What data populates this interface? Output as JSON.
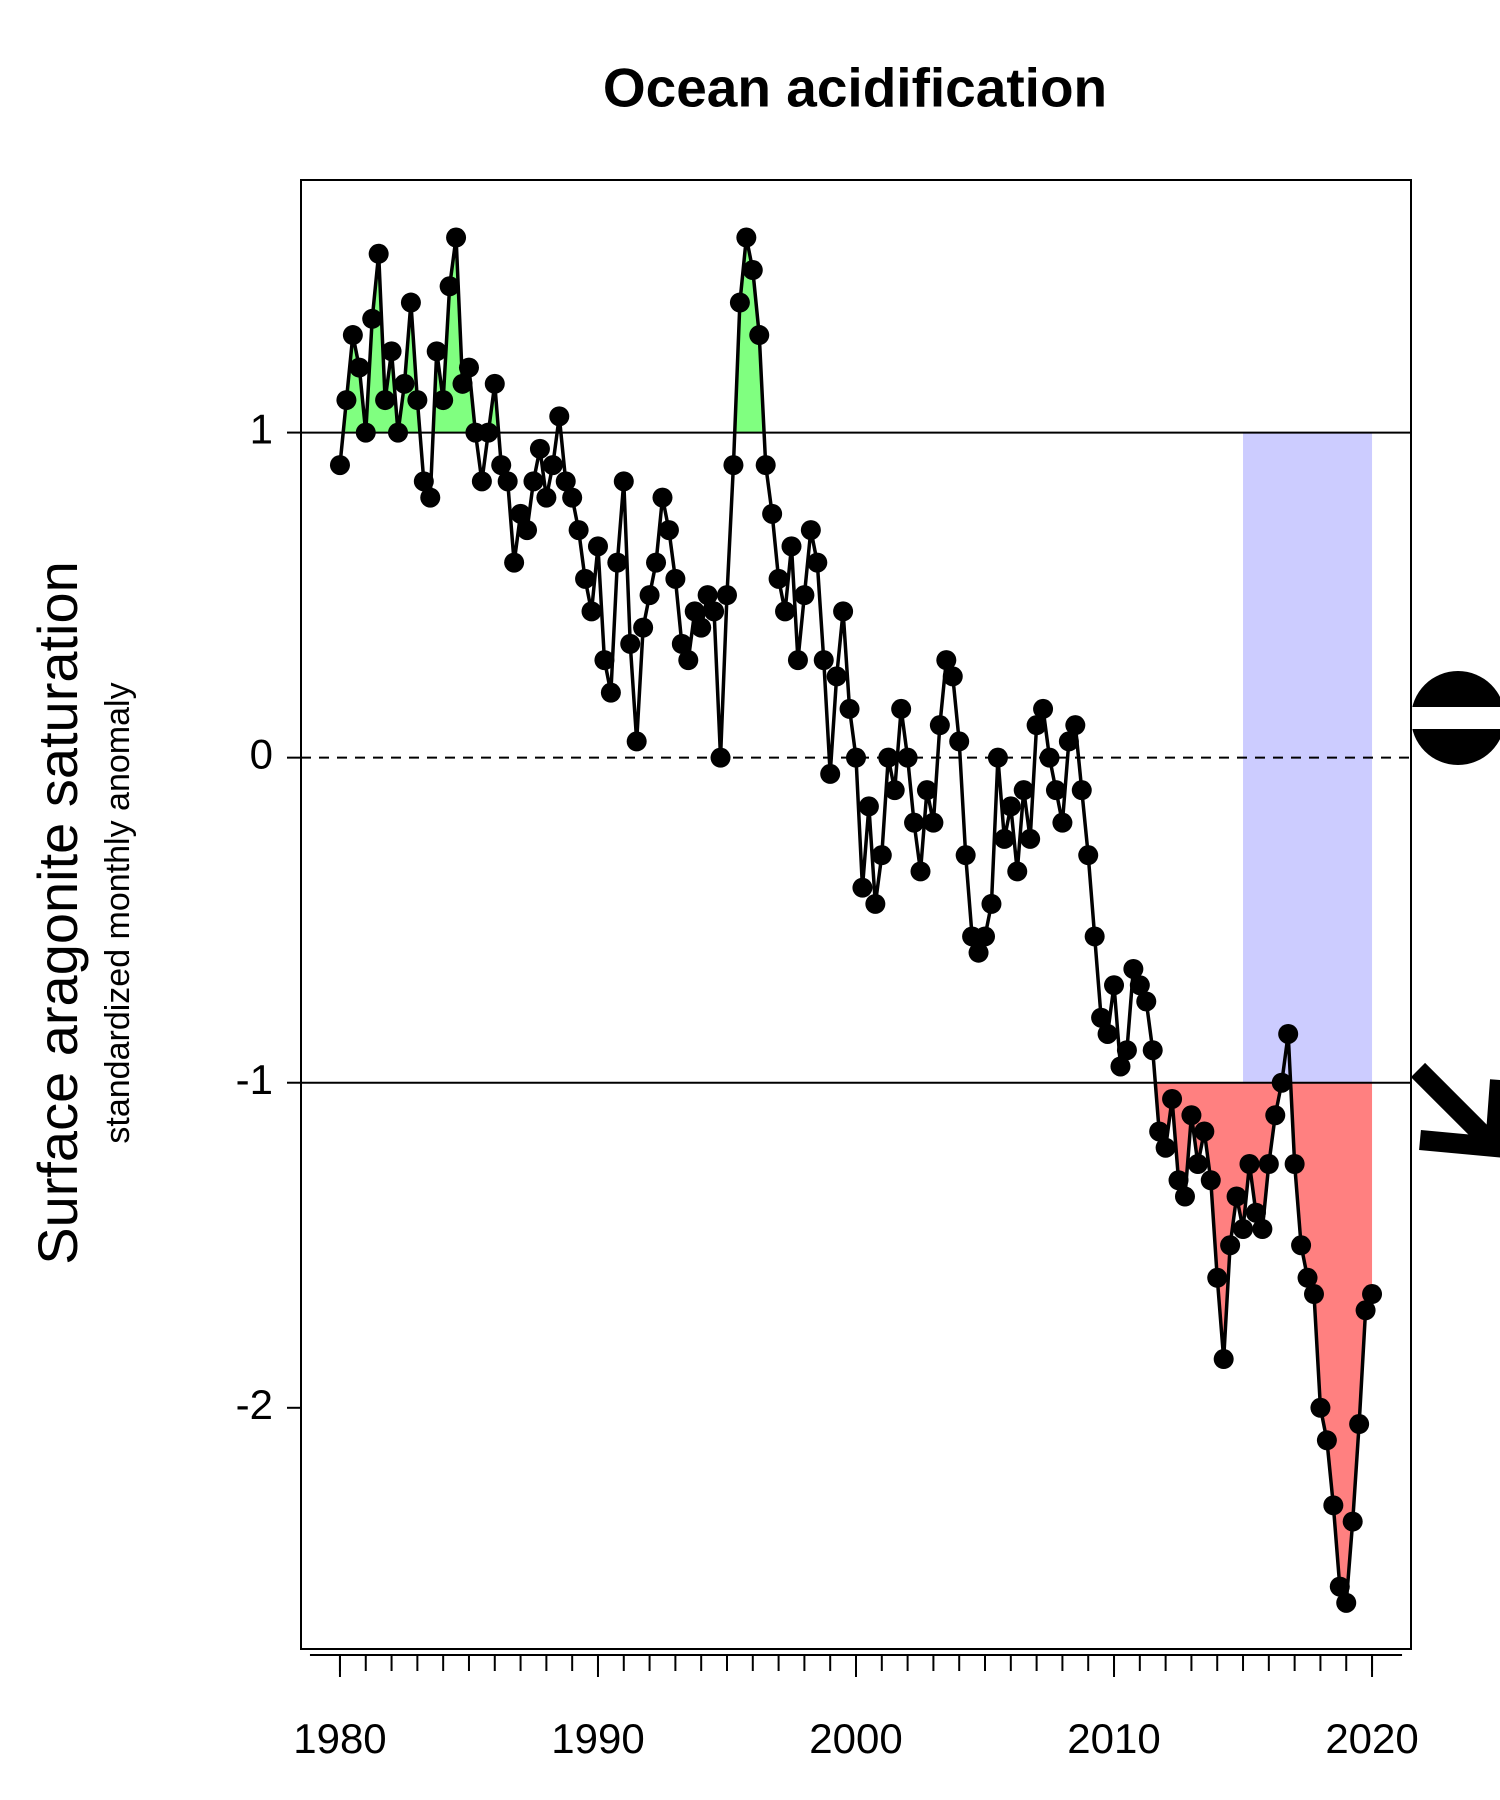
{
  "chart_data": {
    "type": "line",
    "title": "Ocean acidification",
    "y_label": "Surface aragonite saturation",
    "y_sublabel": "standardized monthly anomaly",
    "x": [
      1980.0,
      1980.25,
      1980.5,
      1980.75,
      1981.0,
      1981.25,
      1981.5,
      1981.75,
      1982.0,
      1982.25,
      1982.5,
      1982.75,
      1983.0,
      1983.25,
      1983.5,
      1983.75,
      1984.0,
      1984.25,
      1984.5,
      1984.75,
      1985.0,
      1985.25,
      1985.5,
      1985.75,
      1986.0,
      1986.25,
      1986.5,
      1986.75,
      1987.0,
      1987.25,
      1987.5,
      1987.75,
      1988.0,
      1988.25,
      1988.5,
      1988.75,
      1989.0,
      1989.25,
      1989.5,
      1989.75,
      1990.0,
      1990.25,
      1990.5,
      1990.75,
      1991.0,
      1991.25,
      1991.5,
      1991.75,
      1992.0,
      1992.25,
      1992.5,
      1992.75,
      1993.0,
      1993.25,
      1993.5,
      1993.75,
      1994.0,
      1994.25,
      1994.5,
      1994.75,
      1995.0,
      1995.25,
      1995.5,
      1995.75,
      1996.0,
      1996.25,
      1996.5,
      1996.75,
      1997.0,
      1997.25,
      1997.5,
      1997.75,
      1998.0,
      1998.25,
      1998.5,
      1998.75,
      1999.0,
      1999.25,
      1999.5,
      1999.75,
      2000.0,
      2000.25,
      2000.5,
      2000.75,
      2001.0,
      2001.25,
      2001.5,
      2001.75,
      2002.0,
      2002.25,
      2002.5,
      2002.75,
      2003.0,
      2003.25,
      2003.5,
      2003.75,
      2004.0,
      2004.25,
      2004.5,
      2004.75,
      2005.0,
      2005.25,
      2005.5,
      2005.75,
      2006.0,
      2006.25,
      2006.5,
      2006.75,
      2007.0,
      2007.25,
      2007.5,
      2007.75,
      2008.0,
      2008.25,
      2008.5,
      2008.75,
      2009.0,
      2009.25,
      2009.5,
      2009.75,
      2010.0,
      2010.25,
      2010.5,
      2010.75,
      2011.0,
      2011.25,
      2011.5,
      2011.75,
      2012.0,
      2012.25,
      2012.5,
      2012.75,
      2013.0,
      2013.25,
      2013.5,
      2013.75,
      2014.0,
      2014.25,
      2014.5,
      2014.75,
      2015.0,
      2015.25,
      2015.5,
      2015.75,
      2016.0,
      2016.25,
      2016.5,
      2016.75,
      2017.0,
      2017.25,
      2017.5,
      2017.75,
      2018.0,
      2018.25,
      2018.5,
      2018.75,
      2019.0,
      2019.25,
      2019.5,
      2019.75,
      2020.0
    ],
    "series": [
      {
        "color": "#000000",
        "values": [
          0.9,
          1.1,
          1.3,
          1.2,
          1.0,
          1.35,
          1.55,
          1.1,
          1.25,
          1.0,
          1.15,
          1.4,
          1.1,
          0.85,
          0.8,
          1.25,
          1.1,
          1.45,
          1.6,
          1.15,
          1.2,
          1.0,
          0.85,
          1.0,
          1.15,
          0.9,
          0.85,
          0.6,
          0.75,
          0.7,
          0.85,
          0.95,
          0.8,
          0.9,
          1.05,
          0.85,
          0.8,
          0.7,
          0.55,
          0.45,
          0.65,
          0.3,
          0.2,
          0.6,
          0.85,
          0.35,
          0.05,
          0.4,
          0.5,
          0.6,
          0.8,
          0.7,
          0.55,
          0.35,
          0.3,
          0.45,
          0.4,
          0.5,
          0.45,
          0.0,
          0.5,
          0.9,
          1.4,
          1.6,
          1.5,
          1.3,
          0.9,
          0.75,
          0.55,
          0.45,
          0.65,
          0.3,
          0.5,
          0.7,
          0.6,
          0.3,
          -0.05,
          0.25,
          0.45,
          0.15,
          0.0,
          -0.4,
          -0.15,
          -0.45,
          -0.3,
          0.0,
          -0.1,
          0.15,
          0.0,
          -0.2,
          -0.35,
          -0.1,
          -0.2,
          0.1,
          0.3,
          0.25,
          0.05,
          -0.3,
          -0.55,
          -0.6,
          -0.55,
          -0.45,
          0.0,
          -0.25,
          -0.15,
          -0.35,
          -0.1,
          -0.25,
          0.1,
          0.15,
          0.0,
          -0.1,
          -0.2,
          0.05,
          0.1,
          -0.1,
          -0.3,
          -0.55,
          -0.8,
          -0.85,
          -0.7,
          -0.95,
          -0.9,
          -0.65,
          -0.7,
          -0.75,
          -0.9,
          -1.15,
          -1.2,
          -1.05,
          -1.3,
          -1.35,
          -1.1,
          -1.25,
          -1.15,
          -1.3,
          -1.6,
          -1.85,
          -1.5,
          -1.35,
          -1.45,
          -1.25,
          -1.4,
          -1.45,
          -1.25,
          -1.1,
          -1.0,
          -0.85,
          -1.25,
          -1.5,
          -1.6,
          -1.65,
          -2.0,
          -2.1,
          -2.3,
          -2.55,
          -2.6,
          -2.35,
          -2.05,
          -1.7,
          -1.65
        ]
      }
    ],
    "xlim": [
      1978.49,
      2021.51
    ],
    "ylim": [
      -2.742,
      1.777
    ],
    "xticks": [
      1980,
      1990,
      2000,
      2010,
      2020
    ],
    "xminorticks": [
      1980,
      1981,
      1982,
      1983,
      1984,
      1985,
      1986,
      1987,
      1988,
      1989,
      1990,
      1991,
      1992,
      1993,
      1994,
      1995,
      1996,
      1997,
      1998,
      1999,
      2000,
      2001,
      2002,
      2003,
      2004,
      2005,
      2006,
      2007,
      2008,
      2009,
      2010,
      2011,
      2012,
      2013,
      2014,
      2015,
      2016,
      2017,
      2018,
      2019,
      2020
    ],
    "yticks": [
      -2,
      -1,
      0,
      1
    ],
    "reference_lines": [
      1,
      -1
    ],
    "dashed_line": 0,
    "above_color": "#80ff80",
    "below_color": "#ff8080",
    "highlight_x": [
      2015,
      2020
    ],
    "highlight_color": "#ccccff"
  }
}
